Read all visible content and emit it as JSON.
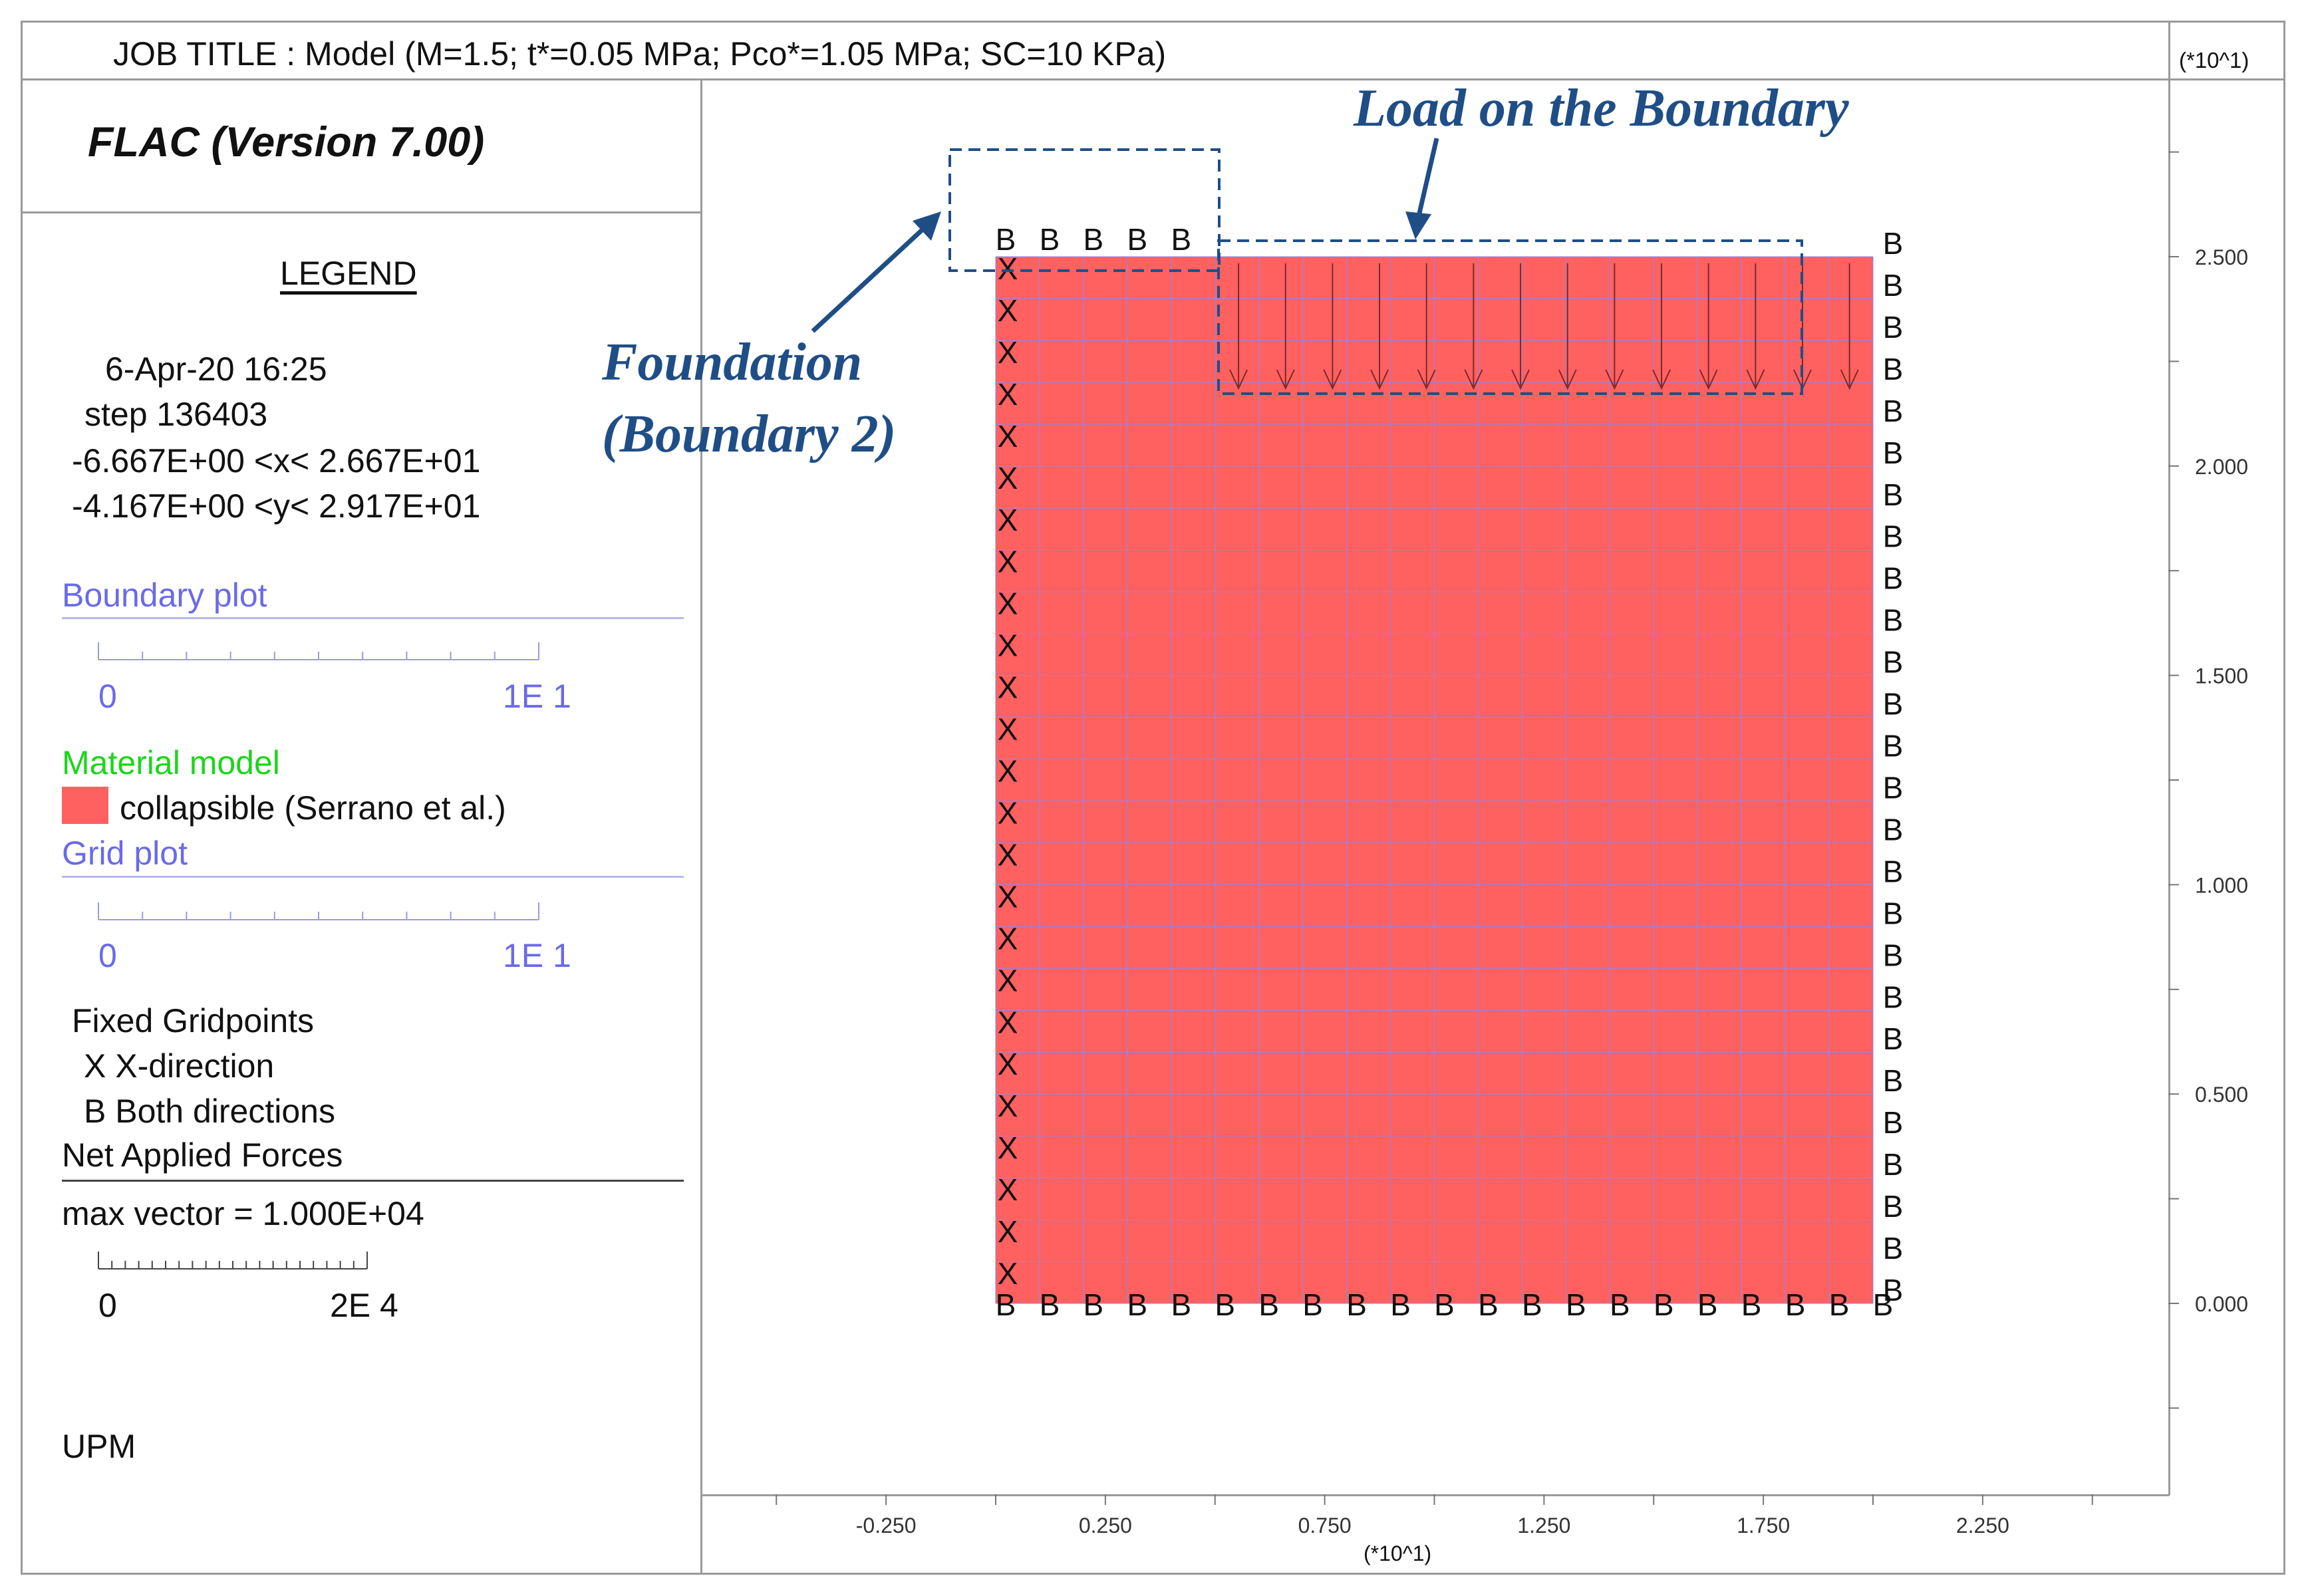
{
  "header": {
    "job_title": "JOB TITLE : Model (M=1.5; t*=0.05 MPa; Pco*=1.05 MPa; SC=10 KPa)",
    "axis_multiplier_top": "(*10^1)"
  },
  "legend": {
    "program": "FLAC (Version 7.00)",
    "heading": "LEGEND",
    "date_time": "6-Apr-20  16:25",
    "step": "step    136403",
    "x_range": "-6.667E+00 <x<  2.667E+01",
    "y_range": "-4.167E+00 <y<  2.917E+01",
    "boundary_plot": {
      "title": "Boundary plot",
      "scale_min": "0",
      "scale_max": "1E  1"
    },
    "material_model": {
      "title": "Material model",
      "item": "collapsible (Serrano et al.)",
      "color": "#ff6060"
    },
    "grid_plot": {
      "title": "Grid plot",
      "scale_min": "0",
      "scale_max": "1E  1"
    },
    "fixed_gridpoints": {
      "title": "Fixed Gridpoints",
      "x_item": "X  X-direction",
      "b_item": "B  Both directions"
    },
    "net_applied_forces": {
      "title": "Net Applied Forces",
      "max_vector": "max vector =     1.000E+04",
      "scale_min": "0",
      "scale_max": "2E  4"
    },
    "institution": "UPM"
  },
  "plot": {
    "y_ticks": [
      "2.500",
      "2.000",
      "1.500",
      "1.000",
      "0.500",
      "0.000"
    ],
    "x_ticks": [
      "-0.250",
      "0.250",
      "0.750",
      "1.250",
      "1.750",
      "2.250"
    ],
    "x_multiplier": "(*10^1)",
    "mesh": {
      "x_min": 0,
      "x_max": 20,
      "y_min": 0,
      "y_max": 25,
      "cols": 20,
      "rows": 25,
      "color": "#ff6060",
      "grid_color": "#8a8af0"
    },
    "foundation_width": 5,
    "load": {
      "x_from": 5,
      "x_to": 19,
      "arrow_count": 14
    },
    "fixity": {
      "left": "X",
      "right": "B",
      "bottom": "B",
      "top_foundation": "B"
    }
  },
  "annotations": {
    "load_on_boundary": "Load on the Boundary",
    "foundation_line1": "Foundation",
    "foundation_line2": "(Boundary 2)",
    "color": "#1f4e86"
  }
}
